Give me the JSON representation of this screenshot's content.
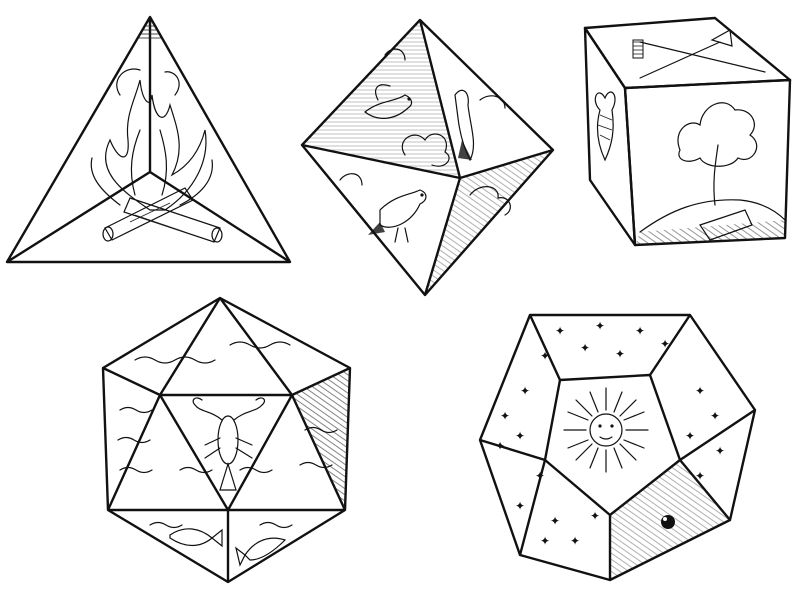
{
  "figure": {
    "solids": [
      {
        "name": "tetrahedron",
        "element": "fire",
        "depicts": [
          "flames",
          "crossed-logs"
        ]
      },
      {
        "name": "octahedron",
        "element": "air",
        "depicts": [
          "birds",
          "clouds"
        ]
      },
      {
        "name": "cube",
        "element": "earth",
        "depicts": [
          "tree",
          "hill",
          "spade-and-rake",
          "root-vegetable"
        ]
      },
      {
        "name": "icosahedron",
        "element": "water",
        "depicts": [
          "waves",
          "lobster",
          "fish"
        ]
      },
      {
        "name": "dodecahedron",
        "element": "aether",
        "depicts": [
          "sun-face",
          "stars"
        ]
      }
    ],
    "ink_color": "#111111",
    "paper_color": "#ffffff"
  }
}
